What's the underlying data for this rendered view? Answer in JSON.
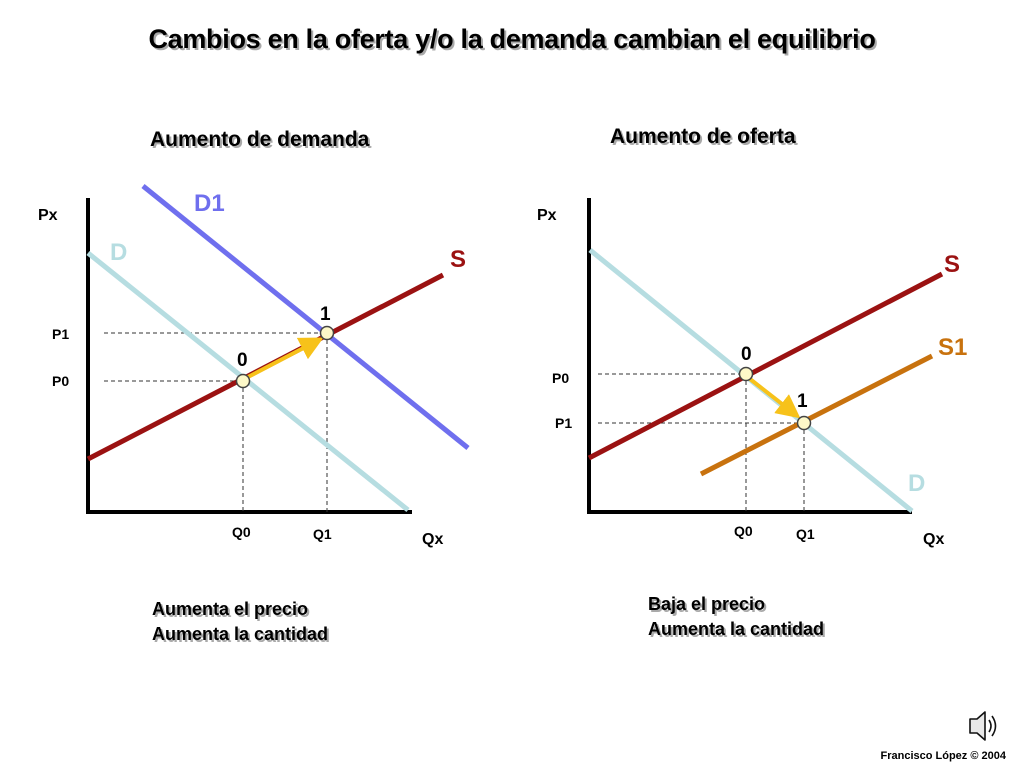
{
  "title": "Cambios en la oferta y/o la demanda cambian el equilibrio",
  "credit": "Francisco López © 2004",
  "colors": {
    "demand_base": "#b6dde1",
    "demand_new": "#6f6fee",
    "supply_base": "#9b1212",
    "supply_new": "#c8720e",
    "arrow": "#f7c21a",
    "point_fill": "#fdf8c8"
  },
  "icons": {
    "speaker": "speaker-icon"
  },
  "panels": {
    "left": {
      "subtitle": "Aumento de demanda",
      "y_axis_label": "Px",
      "x_axis_label": "Qx",
      "curves": {
        "demand_base": "D",
        "demand_new": "D1",
        "supply": "S"
      },
      "prices": {
        "first": "P1",
        "second": "P0"
      },
      "quantities": {
        "first": "Q0",
        "second": "Q1"
      },
      "points": {
        "initial": "0",
        "final": "1"
      },
      "caption": [
        "Aumenta el precio",
        "Aumenta la cantidad"
      ]
    },
    "right": {
      "subtitle": "Aumento de oferta",
      "y_axis_label": "Px",
      "x_axis_label": "Qx",
      "curves": {
        "supply_base": "S",
        "supply_new": "S1",
        "demand": "D"
      },
      "prices": {
        "first": "P0",
        "second": "P1"
      },
      "quantities": {
        "first": "Q0",
        "second": "Q1"
      },
      "points": {
        "initial": "0",
        "final": "1"
      },
      "caption": [
        "Baja el precio",
        "Aumenta la cantidad"
      ]
    }
  }
}
